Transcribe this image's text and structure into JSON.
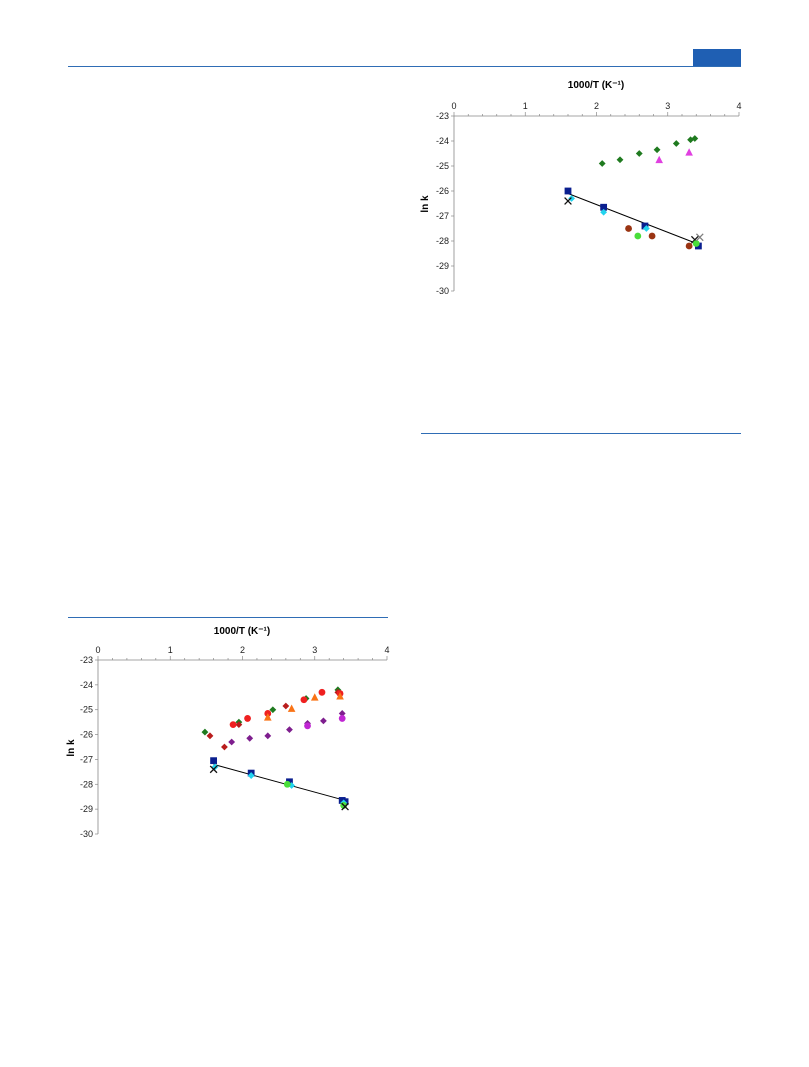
{
  "page": {
    "accent_color": "#1f5fb3",
    "rule_color": "#2f6db5"
  },
  "chart_data": [
    {
      "type": "scatter",
      "title": "",
      "xlabel": "1000/T (K⁻¹)",
      "ylabel": "ln k",
      "xlim": [
        0,
        4
      ],
      "ylim": [
        -30,
        -23
      ],
      "xticks": [
        "0",
        "1",
        "2",
        "3",
        "4"
      ],
      "yticks": [
        "-23",
        "-24",
        "-25",
        "-26",
        "-27",
        "-28",
        "-29",
        "-30"
      ],
      "x_axis_position": "top",
      "grid": false,
      "legend": "none",
      "series": [
        {
          "marker": "diamond",
          "color": "#1f7a1f",
          "points": [
            [
              2.08,
              -24.9
            ],
            [
              2.33,
              -24.75
            ],
            [
              2.6,
              -24.5
            ],
            [
              2.85,
              -24.35
            ],
            [
              3.12,
              -24.1
            ],
            [
              3.32,
              -23.95
            ],
            [
              3.38,
              -23.9
            ]
          ]
        },
        {
          "marker": "triangle",
          "color": "#e040e0",
          "points": [
            [
              2.88,
              -24.75
            ],
            [
              3.3,
              -24.45
            ]
          ]
        },
        {
          "marker": "square",
          "color": "#0a1f8f",
          "points": [
            [
              1.6,
              -26.0
            ],
            [
              2.1,
              -26.65
            ],
            [
              2.68,
              -27.4
            ],
            [
              3.43,
              -28.2
            ]
          ]
        },
        {
          "marker": "diamond",
          "color": "#22d3ee",
          "points": [
            [
              1.65,
              -26.3
            ],
            [
              2.1,
              -26.85
            ],
            [
              2.7,
              -27.5
            ]
          ]
        },
        {
          "marker": "x",
          "color": "#111111",
          "points": [
            [
              1.6,
              -26.4
            ],
            [
              3.38,
              -27.95
            ]
          ]
        },
        {
          "marker": "circle",
          "color": "#9a3412",
          "points": [
            [
              2.45,
              -27.5
            ],
            [
              2.78,
              -27.8
            ],
            [
              3.3,
              -28.2
            ]
          ]
        },
        {
          "marker": "circle",
          "color": "#4ade3a",
          "points": [
            [
              2.58,
              -27.8
            ],
            [
              3.4,
              -28.1
            ]
          ]
        },
        {
          "marker": "x",
          "color": "#7f7f7f",
          "points": [
            [
              3.45,
              -27.85
            ]
          ]
        }
      ],
      "fit_line": {
        "x": [
          1.6,
          3.45
        ],
        "y": [
          -26.1,
          -28.15
        ],
        "color": "#000000"
      }
    },
    {
      "type": "scatter",
      "title": "",
      "xlabel": "1000/T (K⁻¹)",
      "ylabel": "ln k",
      "xlim": [
        0,
        4
      ],
      "ylim": [
        -30,
        -23
      ],
      "xticks": [
        "0",
        "1",
        "2",
        "3",
        "4"
      ],
      "yticks": [
        "-23",
        "-24",
        "-25",
        "-26",
        "-27",
        "-28",
        "-29",
        "-30"
      ],
      "x_axis_position": "top",
      "grid": false,
      "legend": "none",
      "series": [
        {
          "marker": "diamond",
          "color": "#1f7a1f",
          "points": [
            [
              1.48,
              -25.9
            ],
            [
              1.95,
              -25.5
            ],
            [
              2.42,
              -25.0
            ],
            [
              2.88,
              -24.55
            ],
            [
              3.32,
              -24.2
            ]
          ]
        },
        {
          "marker": "diamond",
          "color": "#b91c1c",
          "points": [
            [
              1.55,
              -26.05
            ],
            [
              1.75,
              -26.5
            ],
            [
              1.95,
              -25.6
            ],
            [
              2.6,
              -24.85
            ],
            [
              3.32,
              -24.3
            ]
          ]
        },
        {
          "marker": "circle",
          "color": "#ef2020",
          "points": [
            [
              1.87,
              -25.6
            ],
            [
              2.07,
              -25.35
            ],
            [
              2.35,
              -25.15
            ],
            [
              2.85,
              -24.6
            ],
            [
              3.1,
              -24.3
            ],
            [
              3.35,
              -24.35
            ]
          ]
        },
        {
          "marker": "triangle",
          "color": "#f97316",
          "points": [
            [
              2.35,
              -25.3
            ],
            [
              2.68,
              -24.95
            ],
            [
              3.0,
              -24.5
            ],
            [
              3.35,
              -24.45
            ]
          ]
        },
        {
          "marker": "diamond",
          "color": "#7e1e8e",
          "points": [
            [
              1.85,
              -26.3
            ],
            [
              2.1,
              -26.15
            ],
            [
              2.35,
              -26.05
            ],
            [
              2.65,
              -25.8
            ],
            [
              2.9,
              -25.55
            ],
            [
              3.12,
              -25.45
            ],
            [
              3.38,
              -25.15
            ]
          ]
        },
        {
          "marker": "circle",
          "color": "#c026d3",
          "points": [
            [
              2.9,
              -25.65
            ],
            [
              3.38,
              -25.35
            ]
          ]
        },
        {
          "marker": "square",
          "color": "#0a1f8f",
          "points": [
            [
              1.6,
              -27.05
            ],
            [
              2.12,
              -27.55
            ],
            [
              2.65,
              -27.9
            ],
            [
              3.38,
              -28.65
            ],
            [
              3.42,
              -28.7
            ]
          ]
        },
        {
          "marker": "diamond",
          "color": "#22d3ee",
          "points": [
            [
              1.62,
              -27.3
            ],
            [
              2.12,
              -27.65
            ],
            [
              2.68,
              -28.05
            ],
            [
              3.4,
              -28.75
            ]
          ]
        },
        {
          "marker": "circle",
          "color": "#4ade3a",
          "points": [
            [
              2.62,
              -28.0
            ],
            [
              3.4,
              -28.85
            ]
          ]
        },
        {
          "marker": "x",
          "color": "#111111",
          "points": [
            [
              1.6,
              -27.4
            ],
            [
              3.42,
              -28.9
            ]
          ]
        }
      ],
      "fit_line": {
        "x": [
          1.6,
          3.42
        ],
        "y": [
          -27.2,
          -28.65
        ],
        "color": "#000000"
      }
    }
  ]
}
